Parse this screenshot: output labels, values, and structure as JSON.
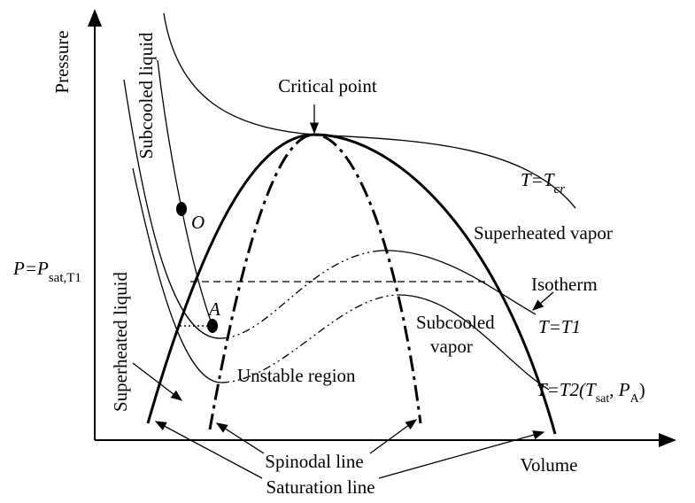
{
  "axes": {
    "y_label": "Pressure",
    "x_label": "Volume"
  },
  "labels": {
    "critical_point": "Critical point",
    "subcooled_liquid": "Subcooled liquid",
    "superheated_liquid": "Superheated liquid",
    "superheated_vapor": "Superheated vapor",
    "subcooled_vapor_1": "Subcooled",
    "subcooled_vapor_2": "vapor",
    "unstable_region": "Unstable region",
    "isotherm": "Isotherm",
    "spinodal_line": "Spinodal line",
    "saturation_line": "Saturation line",
    "point_o": "O",
    "point_a": "A"
  },
  "isotherms": {
    "tcr": {
      "main": "T=T",
      "sub": "cr"
    },
    "psat": {
      "main": "P=P",
      "sub": "sat,T1"
    },
    "t1": {
      "main": "T=T1"
    },
    "t2": {
      "main": "T=T2(T",
      "sub1": "sat",
      "mid": ", P",
      "sub2": "A",
      "end": ")"
    }
  }
}
